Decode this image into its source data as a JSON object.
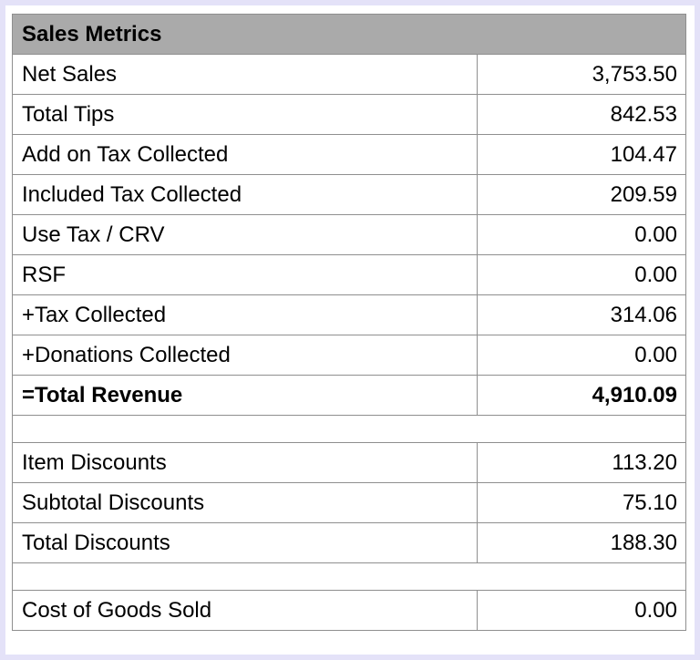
{
  "table": {
    "title": "Sales Metrics",
    "rows": [
      {
        "label": "Net Sales",
        "value": "3,753.50"
      },
      {
        "label": "Total Tips",
        "value": "842.53"
      },
      {
        "label": "Add on Tax Collected",
        "value": "104.47"
      },
      {
        "label": "Included Tax Collected",
        "value": "209.59"
      },
      {
        "label": "Use Tax / CRV",
        "value": "0.00"
      },
      {
        "label": "RSF",
        "value": "0.00"
      },
      {
        "label": "+Tax Collected",
        "value": "314.06"
      },
      {
        "label": "+Donations Collected",
        "value": "0.00"
      },
      {
        "label": "=Total Revenue",
        "value": "4,910.09"
      },
      {
        "label": "Item Discounts",
        "value": "113.20"
      },
      {
        "label": "Subtotal Discounts",
        "value": "75.10"
      },
      {
        "label": "Total Discounts",
        "value": "188.30"
      },
      {
        "label": "Cost of Goods Sold",
        "value": "0.00"
      }
    ]
  }
}
